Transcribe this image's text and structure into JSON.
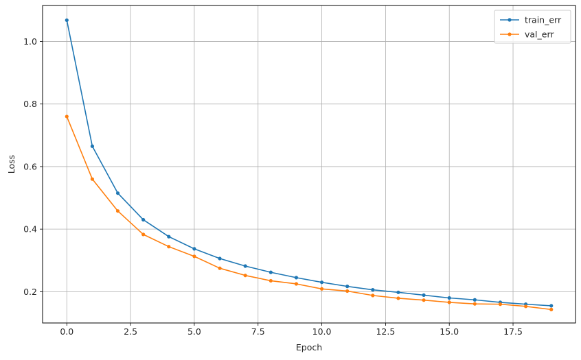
{
  "chart_data": {
    "type": "line",
    "title": "",
    "xlabel": "Epoch",
    "ylabel": "Loss",
    "xlim": [
      -0.95,
      19.95
    ],
    "ylim": [
      0.1,
      1.115
    ],
    "xticks": [
      0.0,
      2.5,
      5.0,
      7.5,
      10.0,
      12.5,
      15.0,
      17.5
    ],
    "xtick_labels": [
      "0.0",
      "2.5",
      "5.0",
      "7.5",
      "10.0",
      "12.5",
      "15.0",
      "17.5"
    ],
    "yticks": [
      0.2,
      0.4,
      0.6,
      0.8,
      1.0
    ],
    "ytick_labels": [
      "0.2",
      "0.4",
      "0.6",
      "0.8",
      "1.0"
    ],
    "grid": true,
    "legend_position": "top-right",
    "x": [
      0,
      1,
      2,
      3,
      4,
      5,
      6,
      7,
      8,
      9,
      10,
      11,
      12,
      13,
      14,
      15,
      16,
      17,
      18,
      19
    ],
    "series": [
      {
        "name": "train_err",
        "color": "#1f77b4",
        "values": [
          1.068,
          0.665,
          0.515,
          0.43,
          0.376,
          0.337,
          0.306,
          0.282,
          0.262,
          0.245,
          0.23,
          0.217,
          0.206,
          0.198,
          0.189,
          0.18,
          0.174,
          0.166,
          0.16,
          0.155
        ]
      },
      {
        "name": "val_err",
        "color": "#ff7f0e",
        "values": [
          0.76,
          0.56,
          0.458,
          0.383,
          0.344,
          0.313,
          0.275,
          0.252,
          0.235,
          0.225,
          0.209,
          0.202,
          0.188,
          0.179,
          0.173,
          0.166,
          0.161,
          0.16,
          0.153,
          0.143
        ]
      }
    ]
  }
}
